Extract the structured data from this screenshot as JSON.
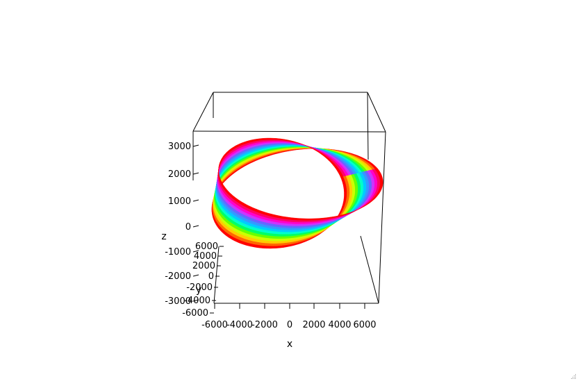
{
  "window": {
    "title": ""
  },
  "colors": {
    "background": "#ffffff",
    "box": "#000000",
    "palette": "rainbow"
  },
  "chart_data": {
    "type": "surface3d",
    "title": "",
    "xlabel": "x",
    "ylabel": "y",
    "zlabel": "z",
    "xlim": [
      -7000,
      7000
    ],
    "ylim": [
      -6000,
      6000
    ],
    "zlim": [
      -3000,
      3500
    ],
    "x_ticks": [
      "-6000",
      "-4000",
      "-2000",
      "0",
      "2000",
      "4000",
      "6000"
    ],
    "y_ticks": [
      "-6000",
      "-4000",
      "-2000",
      "0",
      "2000",
      "4000",
      "6000"
    ],
    "z_ticks": [
      "-3000",
      "-2000",
      "-1000",
      "0",
      "1000",
      "2000",
      "3000"
    ],
    "surface": {
      "shape": "twisted band (Mobius-like ribbon)",
      "color_scale": "rainbow stripes across the band width",
      "grid": false
    }
  }
}
